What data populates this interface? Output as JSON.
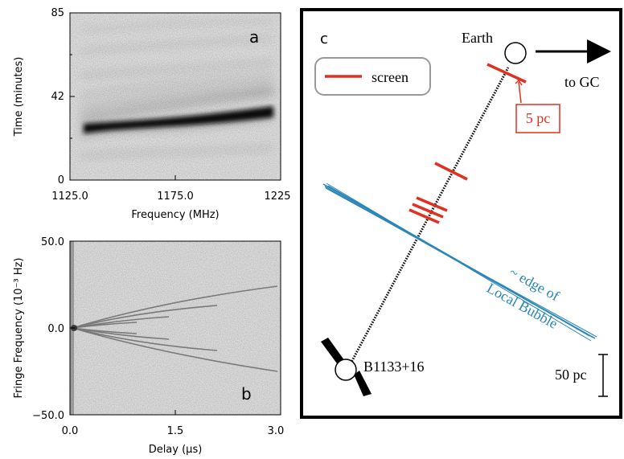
{
  "panel_a": {
    "label": "a",
    "ylabel": "Time (minutes)",
    "xlabel": "Frequency (MHz)",
    "yticks": [
      "85",
      "42",
      "0"
    ],
    "xticks": [
      "1125.0",
      "1175.0",
      "1225"
    ]
  },
  "panel_b": {
    "label": "b",
    "ylabel": "Fringe Frequency (10⁻³ Hz)",
    "xlabel": "Delay (μs)",
    "yticks": [
      "50.0",
      "0.0",
      "−50.0"
    ],
    "xticks": [
      "0.0",
      "1.5",
      "3.0"
    ]
  },
  "panel_c": {
    "label": "c",
    "legend_screen": "screen",
    "earth": "Earth",
    "to_gc": "to GC",
    "scale_5pc": "5 pc",
    "pulsar": "B1133+16",
    "scale_50pc": "50 pc",
    "bubble_line1": "~ edge of",
    "bubble_line2": "Local Bubble",
    "colors": {
      "screen": "#e03020",
      "bubble": "#2a86b8",
      "frame": "#000000"
    }
  },
  "chart_data": [
    {
      "type": "heatmap",
      "title": "",
      "xlabel": "Frequency (MHz)",
      "ylabel": "Time (minutes)",
      "xlim": [
        1125,
        1225
      ],
      "ylim": [
        0,
        85
      ],
      "xticks": [
        1125,
        1175,
        1225
      ],
      "yticks": [
        0,
        42,
        85
      ]
    },
    {
      "type": "heatmap",
      "title": "",
      "xlabel": "Delay (μs)",
      "ylabel": "Fringe Frequency (10⁻³ Hz)",
      "xlim": [
        0,
        3
      ],
      "ylim": [
        -50,
        50
      ],
      "xticks": [
        0,
        1.5,
        3.0
      ],
      "yticks": [
        -50,
        0,
        50
      ]
    }
  ]
}
